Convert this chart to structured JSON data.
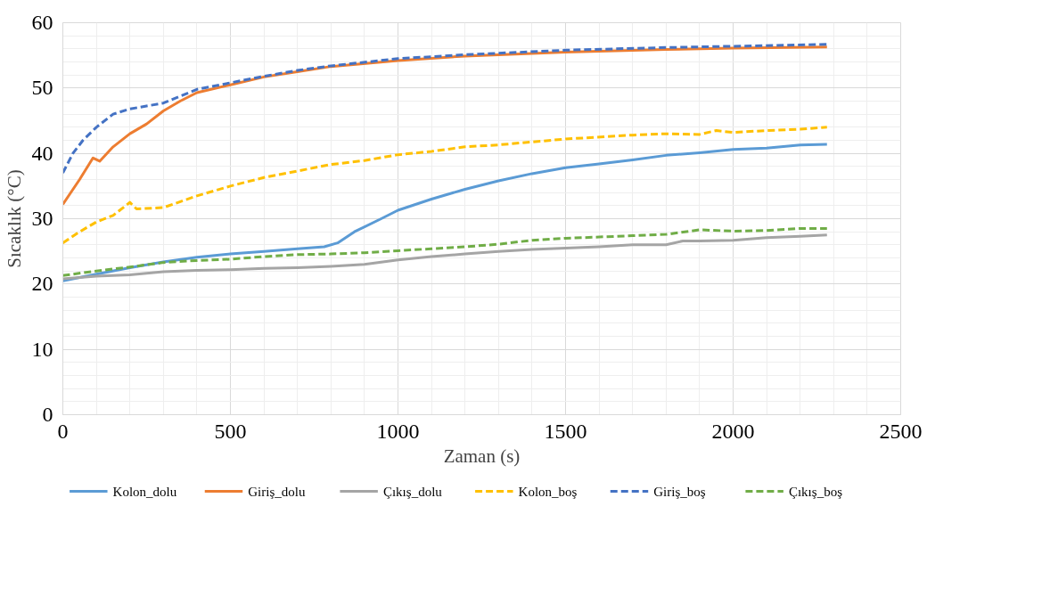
{
  "chart_data": {
    "type": "line",
    "xlabel": "Zaman (s)",
    "ylabel": "Sıcaklık (°C)",
    "xlim": [
      0,
      2500
    ],
    "xticks": [
      0,
      500,
      1000,
      1500,
      2000,
      2500
    ],
    "ylim": [
      0,
      60
    ],
    "yticks": [
      0,
      10,
      20,
      30,
      40,
      50,
      60
    ],
    "grid": true,
    "legend": "bottom",
    "series": [
      {
        "name": "Kolon_dolu",
        "color": "#5b9bd5",
        "line_style": "solid",
        "x": [
          0,
          100,
          200,
          300,
          400,
          500,
          600,
          700,
          780,
          820,
          870,
          950,
          1000,
          1100,
          1200,
          1300,
          1400,
          1500,
          1600,
          1700,
          1800,
          1900,
          2000,
          2100,
          2200,
          2280
        ],
        "values": [
          20.5,
          21.5,
          22.5,
          23.4,
          24.1,
          24.6,
          25.0,
          25.4,
          25.7,
          26.3,
          28,
          30,
          31.3,
          33,
          34.5,
          35.8,
          36.9,
          37.8,
          38.4,
          39,
          39.7,
          40.1,
          40.6,
          40.8,
          41.3,
          41.4
        ]
      },
      {
        "name": "Giriş_dolu",
        "color": "#ed7d31",
        "line_style": "solid",
        "x": [
          0,
          50,
          90,
          110,
          150,
          200,
          250,
          300,
          350,
          400,
          500,
          600,
          700,
          800,
          1000,
          1200,
          1500,
          1800,
          2000,
          2280
        ],
        "values": [
          32.2,
          36,
          39.3,
          38.8,
          41,
          43,
          44.5,
          46.5,
          48,
          49.3,
          50.5,
          51.7,
          52.5,
          53.3,
          54.2,
          54.9,
          55.5,
          55.9,
          56.1,
          56.3
        ]
      },
      {
        "name": "Çıkış_dolu",
        "color": "#a5a5a5",
        "line_style": "solid",
        "x": [
          0,
          100,
          200,
          300,
          400,
          500,
          600,
          700,
          800,
          900,
          1000,
          1100,
          1200,
          1300,
          1400,
          1500,
          1600,
          1700,
          1800,
          1850,
          1900,
          2000,
          2100,
          2200,
          2280
        ],
        "values": [
          20.8,
          21.2,
          21.4,
          21.9,
          22.1,
          22.2,
          22.4,
          22.5,
          22.7,
          23,
          23.7,
          24.2,
          24.6,
          25,
          25.3,
          25.5,
          25.7,
          26,
          26,
          26.6,
          26.6,
          26.7,
          27.1,
          27.3,
          27.5
        ]
      },
      {
        "name": "Kolon_boş",
        "color": "#ffc000",
        "line_style": "dashed",
        "x": [
          0,
          50,
          100,
          150,
          200,
          220,
          300,
          400,
          500,
          600,
          700,
          800,
          900,
          1000,
          1100,
          1200,
          1300,
          1500,
          1700,
          1800,
          1900,
          1950,
          2000,
          2100,
          2200,
          2280
        ],
        "values": [
          26.3,
          28,
          29.5,
          30.5,
          32.5,
          31.5,
          31.7,
          33.5,
          35,
          36.3,
          37.3,
          38.3,
          38.9,
          39.8,
          40.3,
          41,
          41.3,
          42.2,
          42.8,
          43,
          42.9,
          43.5,
          43.2,
          43.5,
          43.7,
          44
        ]
      },
      {
        "name": "Giriş_boş",
        "color": "#4472c4",
        "line_style": "dashed",
        "x": [
          0,
          30,
          60,
          100,
          150,
          200,
          300,
          400,
          500,
          600,
          700,
          800,
          1000,
          1200,
          1500,
          1800,
          2000,
          2280
        ],
        "values": [
          37,
          40,
          42,
          44,
          46,
          46.8,
          47.7,
          49.8,
          50.8,
          51.8,
          52.7,
          53.4,
          54.5,
          55.1,
          55.8,
          56.2,
          56.4,
          56.7
        ]
      },
      {
        "name": "Çıkış_boş",
        "color": "#70ad47",
        "line_style": "dashed",
        "x": [
          0,
          100,
          200,
          300,
          400,
          500,
          600,
          700,
          800,
          900,
          1000,
          1100,
          1200,
          1300,
          1400,
          1500,
          1600,
          1700,
          1800,
          1900,
          2000,
          2100,
          2200,
          2280
        ],
        "values": [
          21.3,
          22,
          22.6,
          23.3,
          23.6,
          23.8,
          24.2,
          24.5,
          24.6,
          24.8,
          25.1,
          25.4,
          25.7,
          26.1,
          26.7,
          27,
          27.2,
          27.4,
          27.6,
          28.3,
          28.1,
          28.2,
          28.5,
          28.5
        ]
      }
    ]
  }
}
